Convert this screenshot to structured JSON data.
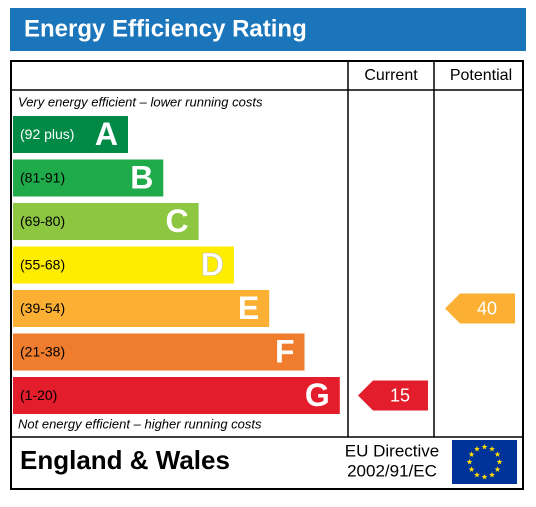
{
  "title": "Energy Efficiency Rating",
  "columns": [
    "Current",
    "Potential"
  ],
  "top_note": "Very energy efficient – lower running costs",
  "bottom_note": "Not energy efficient – higher running costs",
  "bands": [
    {
      "range": "(92 plus)",
      "letter": "A",
      "color": "#008a45"
    },
    {
      "range": "(81-91)",
      "letter": "B",
      "color": "#1fab4a"
    },
    {
      "range": "(69-80)",
      "letter": "C",
      "color": "#8dc641"
    },
    {
      "range": "(55-68)",
      "letter": "D",
      "color": "#ffed00"
    },
    {
      "range": "(39-54)",
      "letter": "E",
      "color": "#fbb034"
    },
    {
      "range": "(21-38)",
      "letter": "F",
      "color": "#ef7d2d"
    },
    {
      "range": "(1-20)",
      "letter": "G",
      "color": "#e31d2b"
    }
  ],
  "current": 15,
  "potential": 40,
  "footer": {
    "region": "England & Wales",
    "directive": [
      "EU Directive",
      "2002/91/EC"
    ]
  }
}
